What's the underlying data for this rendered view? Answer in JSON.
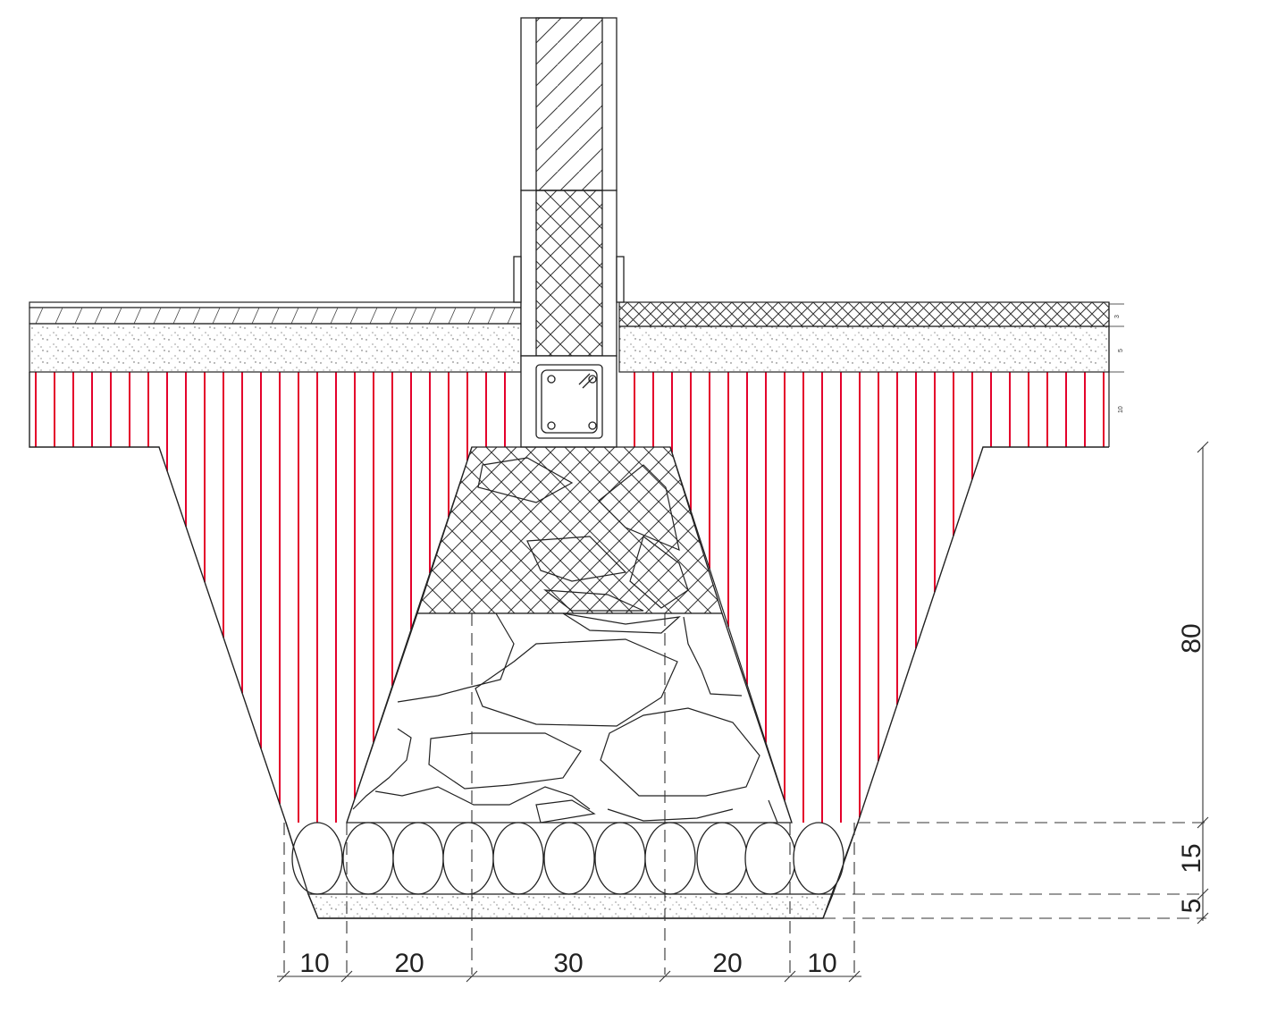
{
  "colors": {
    "line": "#222222",
    "fill_hatch": "#e4002b",
    "background": "#ffffff"
  },
  "section": {
    "horizontal_dimensions": [
      "10",
      "20",
      "30",
      "20",
      "10"
    ],
    "vertical_dimensions": {
      "trench_depth": "80",
      "stone_layer": "15",
      "base_layer": "5"
    },
    "floor_layer_marks": [
      "3",
      "5",
      "10"
    ]
  }
}
